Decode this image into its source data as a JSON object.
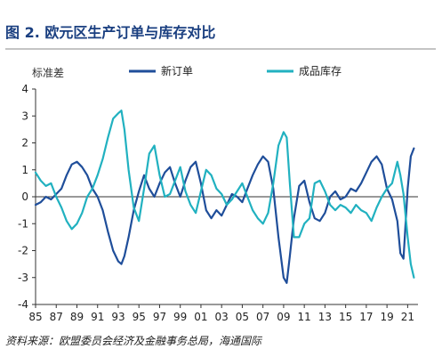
{
  "figure_title": "图 2. 欧元区生产订单与库存对比",
  "source_note": "资料来源：欧盟委员会经济及金融事务总局，海通国际",
  "chart_data": {
    "type": "line",
    "title": "",
    "ylabel": "标准差",
    "xlabel": "",
    "ylim": [
      -4,
      4
    ],
    "yticks": [
      -4,
      -3,
      -2,
      -1,
      0,
      1,
      2,
      3,
      4
    ],
    "xlim": [
      1985,
      2022
    ],
    "xticks": [
      "85",
      "87",
      "89",
      "91",
      "93",
      "95",
      "97",
      "99",
      "01",
      "03",
      "05",
      "07",
      "09",
      "11",
      "13",
      "15",
      "17",
      "19",
      "21"
    ],
    "grid": false,
    "legend_position": "top",
    "series": [
      {
        "name": "新订单",
        "color": "#1f4e9a",
        "x": [
          1985.0,
          1985.5,
          1986.0,
          1986.5,
          1987.0,
          1987.5,
          1988.0,
          1988.5,
          1989.0,
          1989.5,
          1990.0,
          1990.5,
          1991.0,
          1991.5,
          1992.0,
          1992.5,
          1993.0,
          1993.3,
          1993.6,
          1994.0,
          1994.5,
          1995.0,
          1995.5,
          1996.0,
          1996.5,
          1997.0,
          1997.5,
          1998.0,
          1998.5,
          1999.0,
          1999.5,
          2000.0,
          2000.5,
          2001.0,
          2001.5,
          2002.0,
          2002.5,
          2003.0,
          2003.5,
          2004.0,
          2004.5,
          2005.0,
          2005.5,
          2006.0,
          2006.5,
          2007.0,
          2007.5,
          2008.0,
          2008.5,
          2009.0,
          2009.3,
          2009.6,
          2010.0,
          2010.5,
          2011.0,
          2011.5,
          2012.0,
          2012.5,
          2013.0,
          2013.5,
          2014.0,
          2014.5,
          2015.0,
          2015.5,
          2016.0,
          2016.5,
          2017.0,
          2017.5,
          2018.0,
          2018.5,
          2019.0,
          2019.5,
          2020.0,
          2020.3,
          2020.6,
          2021.0,
          2021.3,
          2021.6
        ],
        "values": [
          -0.3,
          -0.2,
          0.0,
          -0.1,
          0.1,
          0.3,
          0.8,
          1.2,
          1.3,
          1.1,
          0.8,
          0.3,
          0.0,
          -0.5,
          -1.3,
          -2.0,
          -2.4,
          -2.5,
          -2.2,
          -1.5,
          -0.5,
          0.2,
          0.8,
          0.3,
          0.0,
          0.5,
          0.9,
          1.1,
          0.5,
          0.0,
          0.6,
          1.1,
          1.3,
          0.5,
          -0.5,
          -0.8,
          -0.5,
          -0.7,
          -0.3,
          0.1,
          0.0,
          -0.2,
          0.3,
          0.8,
          1.2,
          1.5,
          1.3,
          0.3,
          -1.5,
          -3.0,
          -3.2,
          -2.2,
          -0.8,
          0.4,
          0.6,
          -0.2,
          -0.8,
          -0.9,
          -0.6,
          0.0,
          0.2,
          -0.1,
          0.0,
          0.3,
          0.2,
          0.5,
          0.9,
          1.3,
          1.5,
          1.2,
          0.3,
          -0.1,
          -0.9,
          -2.1,
          -2.3,
          0.3,
          1.5,
          1.8
        ]
      },
      {
        "name": "成品库存",
        "color": "#21b1c0",
        "x": [
          1985.0,
          1985.5,
          1986.0,
          1986.5,
          1987.0,
          1987.5,
          1988.0,
          1988.5,
          1989.0,
          1989.5,
          1990.0,
          1990.5,
          1991.0,
          1991.5,
          1992.0,
          1992.5,
          1993.0,
          1993.3,
          1993.6,
          1994.0,
          1994.5,
          1995.0,
          1995.5,
          1996.0,
          1996.5,
          1997.0,
          1997.5,
          1998.0,
          1998.5,
          1999.0,
          1999.5,
          2000.0,
          2000.5,
          2001.0,
          2001.5,
          2002.0,
          2002.5,
          2003.0,
          2003.5,
          2004.0,
          2004.5,
          2005.0,
          2005.5,
          2006.0,
          2006.5,
          2007.0,
          2007.5,
          2008.0,
          2008.5,
          2009.0,
          2009.3,
          2009.6,
          2010.0,
          2010.5,
          2011.0,
          2011.5,
          2012.0,
          2012.5,
          2013.0,
          2013.5,
          2014.0,
          2014.5,
          2015.0,
          2015.5,
          2016.0,
          2016.5,
          2017.0,
          2017.5,
          2018.0,
          2018.5,
          2019.0,
          2019.5,
          2020.0,
          2020.3,
          2020.6,
          2021.0,
          2021.3,
          2021.6
        ],
        "values": [
          0.9,
          0.6,
          0.4,
          0.5,
          0.0,
          -0.4,
          -0.9,
          -1.2,
          -1.0,
          -0.6,
          0.0,
          0.3,
          0.8,
          1.4,
          2.2,
          2.9,
          3.1,
          3.2,
          2.5,
          1.0,
          -0.4,
          -0.9,
          0.3,
          1.6,
          1.9,
          0.8,
          0.0,
          0.1,
          0.6,
          1.1,
          0.2,
          -0.3,
          -0.6,
          0.2,
          1.0,
          0.8,
          0.3,
          0.1,
          -0.3,
          -0.1,
          0.2,
          0.5,
          0.0,
          -0.5,
          -0.8,
          -1.0,
          -0.6,
          0.5,
          1.9,
          2.4,
          2.2,
          0.5,
          -1.5,
          -1.5,
          -1.0,
          -0.8,
          0.5,
          0.6,
          0.2,
          -0.3,
          -0.5,
          -0.3,
          -0.4,
          -0.6,
          -0.3,
          -0.5,
          -0.6,
          -0.9,
          -0.4,
          0.0,
          0.3,
          0.5,
          1.3,
          0.8,
          0.1,
          -1.5,
          -2.5,
          -3.0
        ]
      }
    ]
  }
}
